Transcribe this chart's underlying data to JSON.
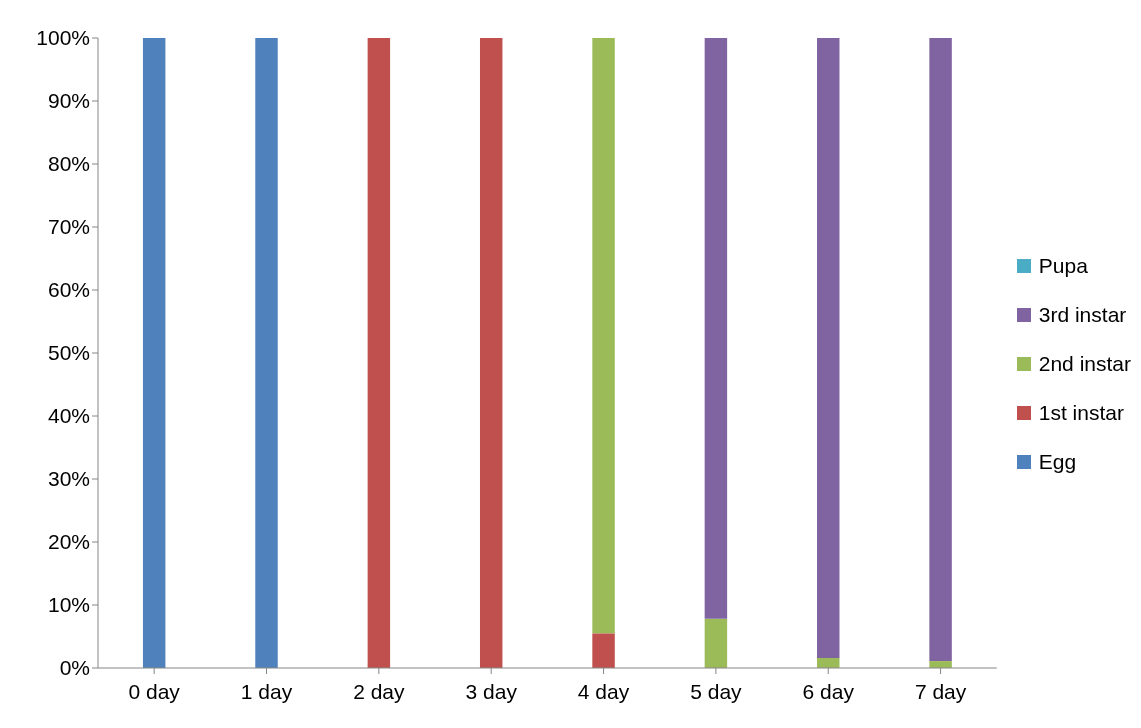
{
  "chart_data": {
    "type": "bar",
    "stacked": true,
    "categories": [
      "0 day",
      "1 day",
      "2 day",
      "3 day",
      "4 day",
      "5 day",
      "6 day",
      "7 day"
    ],
    "series": [
      {
        "name": "Egg",
        "color": "#4f81bd",
        "values": [
          100,
          100,
          0,
          0,
          0,
          0,
          0,
          0
        ]
      },
      {
        "name": "1st instar",
        "color": "#c0504d",
        "values": [
          0,
          0,
          100,
          100,
          5.5,
          0,
          0,
          0
        ]
      },
      {
        "name": "2nd instar",
        "color": "#9bbb59",
        "values": [
          0,
          0,
          0,
          0,
          94.5,
          7.8,
          1.6,
          1.1
        ]
      },
      {
        "name": "3rd instar",
        "color": "#8064a2",
        "values": [
          0,
          0,
          0,
          0,
          0,
          92.2,
          98.4,
          98.9
        ]
      },
      {
        "name": "Pupa",
        "color": "#4bacc6",
        "values": [
          0,
          0,
          0,
          0,
          0,
          0,
          0,
          0
        ]
      }
    ],
    "ylim": [
      0,
      100
    ],
    "yticks": [
      {
        "value": 0,
        "label": "0%"
      },
      {
        "value": 10,
        "label": "10%"
      },
      {
        "value": 20,
        "label": "20%"
      },
      {
        "value": 30,
        "label": "30%"
      },
      {
        "value": 40,
        "label": "40%"
      },
      {
        "value": 50,
        "label": "50%"
      },
      {
        "value": 60,
        "label": "60%"
      },
      {
        "value": 70,
        "label": "70%"
      },
      {
        "value": 80,
        "label": "80%"
      },
      {
        "value": 90,
        "label": "90%"
      },
      {
        "value": 100,
        "label": "100%"
      }
    ],
    "grid": false,
    "legend": "right"
  }
}
